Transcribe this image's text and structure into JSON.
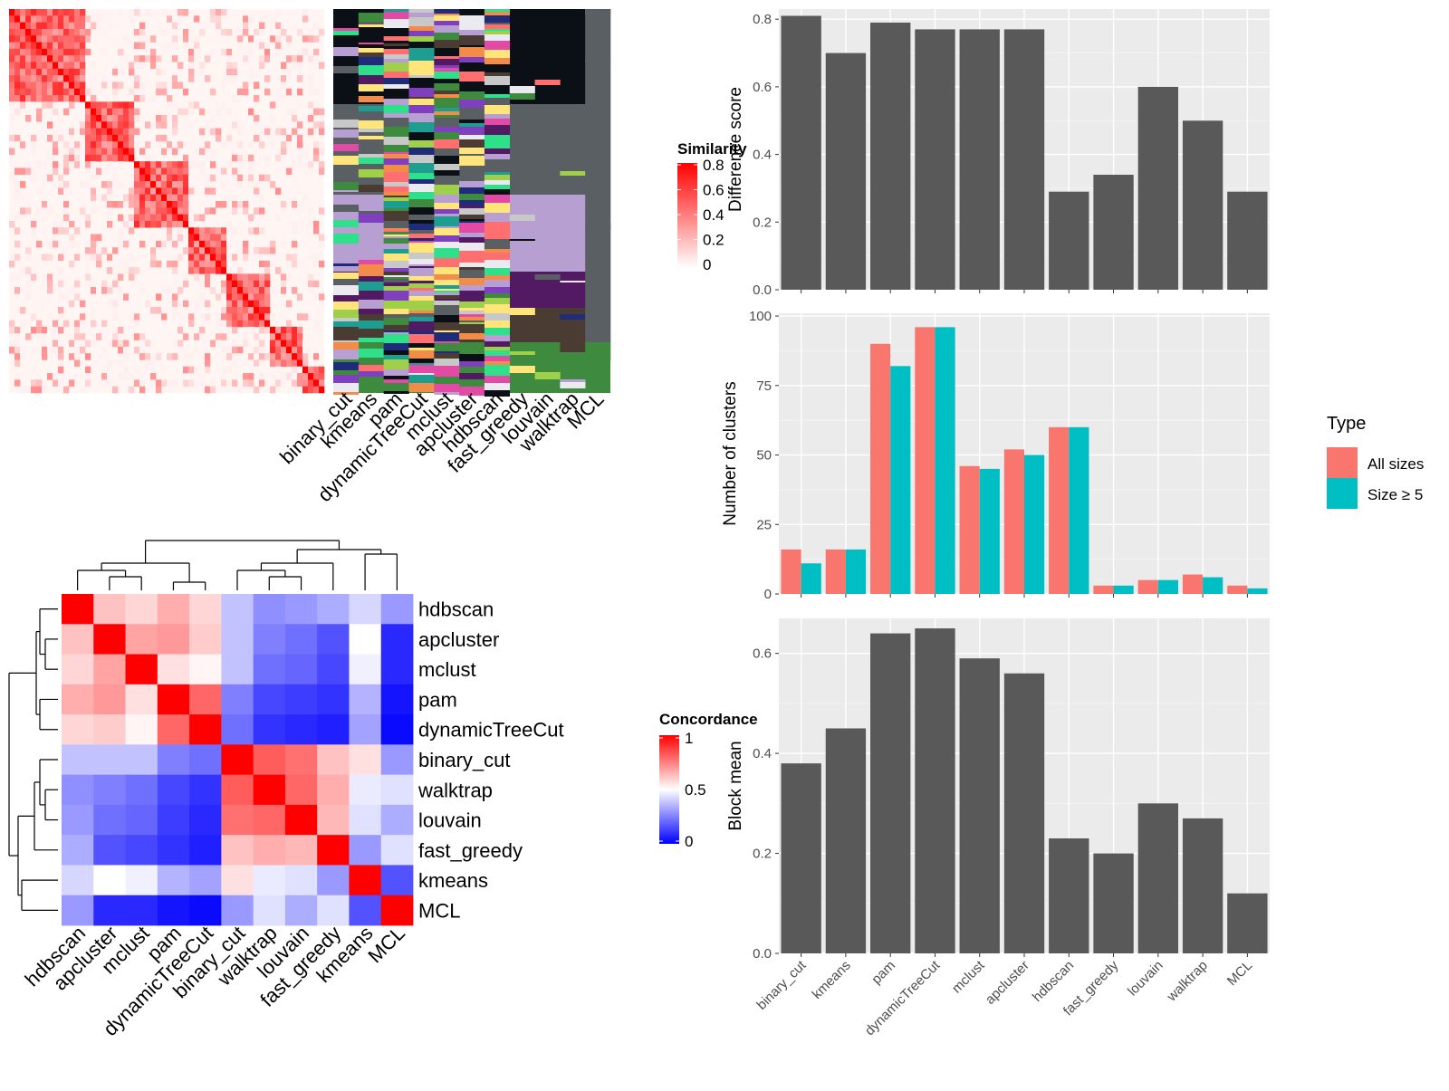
{
  "colors": {
    "panel_bg": "#EBEBEB",
    "grid_major": "#FFFFFF",
    "bar_gray": "#595959",
    "all_sizes": "#F8766D",
    "size_ge_5": "#00BFC4",
    "heat_high": "#FF0000",
    "heat_mid": "#FFFFFF",
    "heat_low": "#0000FF"
  },
  "methods": [
    "binary_cut",
    "kmeans",
    "pam",
    "dynamicTreeCut",
    "mclust",
    "apcluster",
    "hdbscan",
    "fast_greedy",
    "louvain",
    "walktrap",
    "MCL"
  ],
  "similarity_legend": {
    "title": "Similarity",
    "ticks": [
      "0.8",
      "0.6",
      "0.4",
      "0.2",
      "0"
    ]
  },
  "concordance_legend": {
    "title": "Concordance",
    "ticks": [
      "1",
      "0.5",
      "0"
    ]
  },
  "chart_data": [
    {
      "type": "heatmap",
      "name": "similarity-matrix",
      "description_free": true,
      "legend_title": "Similarity",
      "color_range": [
        0,
        0.8
      ]
    },
    {
      "type": "heatmap",
      "name": "cluster-membership",
      "x_categories": [
        "binary_cut",
        "kmeans",
        "pam",
        "dynamicTreeCut",
        "mclust",
        "apcluster",
        "hdbscan",
        "fast_greedy",
        "louvain",
        "walktrap",
        "MCL"
      ]
    },
    {
      "type": "heatmap",
      "name": "concordance",
      "row_categories": [
        "hdbscan",
        "apcluster",
        "mclust",
        "pam",
        "dynamicTreeCut",
        "binary_cut",
        "walktrap",
        "louvain",
        "fast_greedy",
        "kmeans",
        "MCL"
      ],
      "col_categories": [
        "hdbscan",
        "apcluster",
        "mclust",
        "pam",
        "dynamicTreeCut",
        "binary_cut",
        "walktrap",
        "louvain",
        "fast_greedy",
        "kmeans",
        "MCL"
      ],
      "values": [
        [
          1.0,
          0.62,
          0.58,
          0.66,
          0.58,
          0.38,
          0.28,
          0.3,
          0.34,
          0.42,
          0.3
        ],
        [
          0.62,
          1.0,
          0.68,
          0.7,
          0.6,
          0.38,
          0.25,
          0.22,
          0.16,
          0.5,
          0.08
        ],
        [
          0.58,
          0.68,
          1.0,
          0.56,
          0.52,
          0.38,
          0.22,
          0.2,
          0.14,
          0.47,
          0.08
        ],
        [
          0.66,
          0.7,
          0.56,
          1.0,
          0.8,
          0.25,
          0.14,
          0.12,
          0.1,
          0.35,
          0.04
        ],
        [
          0.58,
          0.6,
          0.52,
          0.8,
          1.0,
          0.22,
          0.1,
          0.08,
          0.06,
          0.32,
          0.02
        ],
        [
          0.38,
          0.38,
          0.38,
          0.25,
          0.22,
          1.0,
          0.82,
          0.78,
          0.62,
          0.56,
          0.3
        ],
        [
          0.28,
          0.25,
          0.22,
          0.14,
          0.1,
          0.82,
          1.0,
          0.8,
          0.66,
          0.46,
          0.44
        ],
        [
          0.3,
          0.22,
          0.2,
          0.12,
          0.08,
          0.78,
          0.8,
          1.0,
          0.64,
          0.44,
          0.34
        ],
        [
          0.34,
          0.16,
          0.14,
          0.1,
          0.06,
          0.62,
          0.66,
          0.64,
          1.0,
          0.3,
          0.44
        ],
        [
          0.42,
          0.5,
          0.47,
          0.35,
          0.32,
          0.56,
          0.46,
          0.44,
          0.3,
          1.0,
          0.16
        ],
        [
          0.3,
          0.08,
          0.08,
          0.04,
          0.02,
          0.3,
          0.44,
          0.34,
          0.44,
          0.16,
          1.0
        ]
      ],
      "legend_title": "Concordance",
      "color_range": [
        0,
        1
      ]
    },
    {
      "type": "bar",
      "name": "difference-score",
      "categories": [
        "binary_cut",
        "kmeans",
        "pam",
        "dynamicTreeCut",
        "mclust",
        "apcluster",
        "hdbscan",
        "fast_greedy",
        "louvain",
        "walktrap",
        "MCL"
      ],
      "values": [
        0.81,
        0.7,
        0.79,
        0.77,
        0.77,
        0.77,
        0.29,
        0.34,
        0.6,
        0.5,
        0.29
      ],
      "ylabel": "Difference score",
      "ylim": [
        0,
        0.83
      ],
      "yticks": [
        "0.0",
        "0.2",
        "0.4",
        "0.6",
        "0.8"
      ],
      "grid": true
    },
    {
      "type": "bar",
      "name": "number-of-clusters",
      "categories": [
        "binary_cut",
        "kmeans",
        "pam",
        "dynamicTreeCut",
        "mclust",
        "apcluster",
        "hdbscan",
        "fast_greedy",
        "louvain",
        "walktrap",
        "MCL"
      ],
      "series": [
        {
          "name": "All sizes",
          "values": [
            16,
            16,
            90,
            96,
            46,
            52,
            60,
            3,
            5,
            7,
            3
          ]
        },
        {
          "name": "Size ≥ 5",
          "values": [
            11,
            16,
            82,
            96,
            45,
            50,
            60,
            3,
            5,
            6,
            2
          ]
        }
      ],
      "ylabel": "Number of clusters",
      "ylim": [
        0,
        101
      ],
      "yticks": [
        "0",
        "25",
        "50",
        "75",
        "100"
      ],
      "legend_title": "Type",
      "legend_position": "right",
      "grid": true
    },
    {
      "type": "bar",
      "name": "block-mean",
      "categories": [
        "binary_cut",
        "kmeans",
        "pam",
        "dynamicTreeCut",
        "mclust",
        "apcluster",
        "hdbscan",
        "fast_greedy",
        "louvain",
        "walktrap",
        "MCL"
      ],
      "values": [
        0.38,
        0.45,
        0.64,
        0.65,
        0.59,
        0.56,
        0.23,
        0.2,
        0.3,
        0.27,
        0.12
      ],
      "ylabel": "Block mean",
      "ylim": [
        0,
        0.67
      ],
      "yticks": [
        "0.0",
        "0.2",
        "0.4",
        "0.6"
      ],
      "grid": true
    }
  ]
}
